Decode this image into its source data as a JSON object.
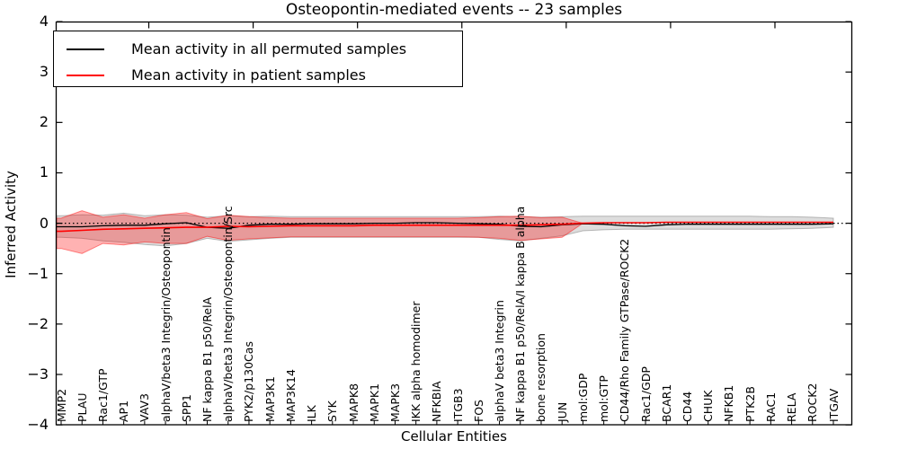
{
  "chart_data": {
    "type": "line",
    "title": "Osteopontin-mediated events -- 23 samples",
    "xlabel": "Cellular Entities",
    "ylabel": "Inferred Activity",
    "ylim": [
      -4,
      4
    ],
    "grid": false,
    "legend_position": "upper-left",
    "zero_reference_line": {
      "style": "dotted",
      "value": 0,
      "color": "#000000"
    },
    "yticks": {
      "values": [
        4,
        3,
        2,
        1,
        0,
        -1,
        -2,
        -3,
        -4
      ],
      "labels": [
        "4",
        "3",
        "2",
        "1",
        "0",
        "−1",
        "−2",
        "−3",
        "−4"
      ]
    },
    "categories": [
      "MMP2",
      "PLAU",
      "Rac1/GTP",
      "AP1",
      "VAV3",
      "alphaV/beta3 Integrin/Osteopontin",
      "SPP1",
      "NF kappa B1 p50/RelA",
      "alphaV/beta3 Integrin/Osteopontin/Src",
      "PYK2/p130Cas",
      "MAP3K1",
      "MAP3K14",
      "ILK",
      "SYK",
      "MAPK8",
      "MAPK1",
      "MAPK3",
      "IKK alpha homodimer",
      "NFKBIA",
      "ITGB3",
      "FOS",
      "alphaV beta3 Integrin",
      "NF kappa B1 p50/RelA/I kappa B alpha",
      "bone resorption",
      "JUN",
      "mol:GDP",
      "mol:GTP",
      "CD44/Rho Family GTPase/ROCK2",
      "Rac1/GDP",
      "BCAR1",
      "CD44",
      "CHUK",
      "NFKB1",
      "PTK2B",
      "RAC1",
      "RELA",
      "ROCK2",
      "ITGAV"
    ],
    "series": [
      {
        "name": "Mean activity in all permuted samples",
        "color": "#000000",
        "values": [
          -0.07,
          -0.07,
          -0.05,
          -0.04,
          -0.04,
          -0.01,
          0.01,
          -0.08,
          -0.1,
          -0.04,
          -0.02,
          -0.02,
          -0.01,
          -0.01,
          -0.01,
          0.0,
          0.0,
          0.01,
          0.01,
          0.0,
          -0.01,
          -0.02,
          -0.06,
          -0.07,
          -0.03,
          -0.01,
          -0.02,
          -0.05,
          -0.06,
          -0.03,
          -0.02,
          -0.02,
          -0.02,
          -0.02,
          -0.02,
          -0.02,
          -0.02,
          -0.01
        ]
      },
      {
        "name": "Mean activity in patient samples",
        "color": "#ff0000",
        "values": [
          -0.16,
          -0.14,
          -0.12,
          -0.11,
          -0.1,
          -0.09,
          -0.08,
          -0.08,
          -0.06,
          -0.07,
          -0.06,
          -0.05,
          -0.05,
          -0.05,
          -0.05,
          -0.04,
          -0.04,
          -0.04,
          -0.04,
          -0.04,
          -0.04,
          -0.04,
          -0.04,
          -0.03,
          -0.02,
          0.0,
          0.01,
          0.01,
          0.01,
          0.02,
          0.02,
          0.02,
          0.02,
          0.02,
          0.02,
          0.02,
          0.02,
          0.02
        ]
      }
    ],
    "bands": [
      {
        "name": "permuted-samples-band",
        "fill": "#909090",
        "fill_opacity": 0.3,
        "stroke": "#606060",
        "stroke_opacity": 0.4,
        "upper": [
          0.15,
          0.17,
          0.16,
          0.2,
          0.15,
          0.17,
          0.16,
          0.12,
          0.15,
          0.13,
          0.14,
          0.13,
          0.13,
          0.13,
          0.13,
          0.13,
          0.13,
          0.13,
          0.13,
          0.13,
          0.13,
          0.14,
          0.13,
          0.12,
          0.13,
          0.14,
          0.14,
          0.14,
          0.14,
          0.14,
          0.14,
          0.14,
          0.14,
          0.14,
          0.13,
          0.13,
          0.12,
          0.1
        ],
        "lower": [
          -0.28,
          -0.3,
          -0.35,
          -0.38,
          -0.42,
          -0.45,
          -0.4,
          -0.3,
          -0.36,
          -0.33,
          -0.3,
          -0.28,
          -0.28,
          -0.28,
          -0.28,
          -0.28,
          -0.28,
          -0.28,
          -0.28,
          -0.28,
          -0.28,
          -0.32,
          -0.35,
          -0.3,
          -0.25,
          -0.15,
          -0.13,
          -0.12,
          -0.12,
          -0.12,
          -0.12,
          -0.12,
          -0.12,
          -0.12,
          -0.12,
          -0.11,
          -0.1,
          -0.08
        ]
      },
      {
        "name": "patient-samples-band",
        "fill": "#ff0000",
        "fill_opacity": 0.3,
        "stroke": "#ff0000",
        "stroke_opacity": 0.45,
        "upper": [
          0.1,
          0.25,
          0.12,
          0.17,
          0.1,
          0.17,
          0.21,
          0.09,
          0.16,
          0.13,
          0.11,
          0.1,
          0.1,
          0.1,
          0.1,
          0.1,
          0.1,
          0.1,
          0.1,
          0.1,
          0.11,
          0.13,
          0.14,
          0.11,
          0.12,
          0.0,
          0.01,
          0.01,
          0.01,
          0.02,
          0.02,
          0.02,
          0.02,
          0.02,
          0.02,
          0.02,
          0.02,
          0.02
        ],
        "lower": [
          -0.5,
          -0.6,
          -0.4,
          -0.43,
          -0.37,
          -0.4,
          -0.4,
          -0.26,
          -0.34,
          -0.31,
          -0.29,
          -0.27,
          -0.27,
          -0.27,
          -0.27,
          -0.27,
          -0.27,
          -0.27,
          -0.27,
          -0.27,
          -0.28,
          -0.3,
          -0.34,
          -0.31,
          -0.28,
          0.0,
          0.01,
          0.01,
          0.01,
          0.02,
          0.02,
          0.02,
          0.02,
          0.02,
          0.02,
          0.02,
          0.02,
          0.02
        ]
      }
    ]
  },
  "legend": {
    "entries": [
      {
        "label": "Mean activity in all permuted samples",
        "color": "#000000"
      },
      {
        "label": "Mean activity in patient samples",
        "color": "#ff0000"
      }
    ]
  }
}
